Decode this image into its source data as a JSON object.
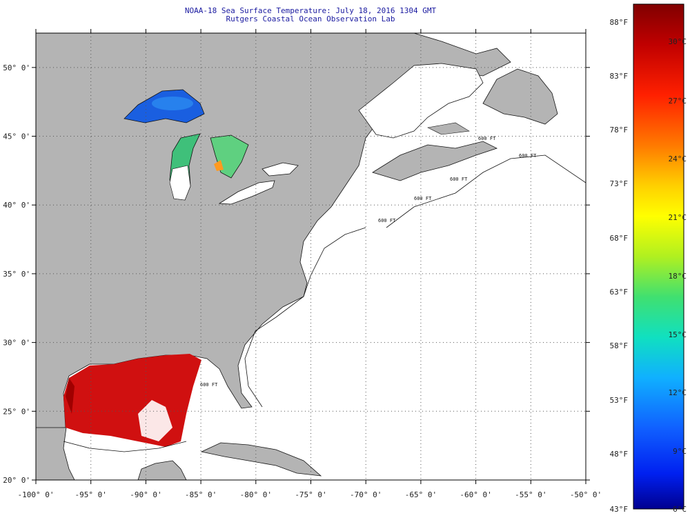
{
  "header": {
    "title": "NOAA-18 Sea Surface Temperature:  July 18, 2016 1304 GMT",
    "subtitle": "Rutgers Coastal Ocean Observation Lab"
  },
  "map": {
    "lon_range": [
      -100,
      -50
    ],
    "lat_range": [
      20,
      52.5
    ],
    "lon_ticks": [
      {
        "value": -100,
        "label": "-100° 0'"
      },
      {
        "value": -95,
        "label": "-95° 0'"
      },
      {
        "value": -90,
        "label": "-90° 0'"
      },
      {
        "value": -85,
        "label": "-85° 0'"
      },
      {
        "value": -80,
        "label": "-80° 0'"
      },
      {
        "value": -75,
        "label": "-75° 0'"
      },
      {
        "value": -70,
        "label": "-70° 0'"
      },
      {
        "value": -65,
        "label": "-65° 0'"
      },
      {
        "value": -60,
        "label": "-60° 0'"
      },
      {
        "value": -55,
        "label": "-55° 0'"
      },
      {
        "value": -50,
        "label": "-50° 0'"
      }
    ],
    "lat_ticks": [
      {
        "value": 20,
        "label": "20° 0'"
      },
      {
        "value": 25,
        "label": "25° 0'"
      },
      {
        "value": 30,
        "label": "30° 0'"
      },
      {
        "value": 35,
        "label": "35° 0'"
      },
      {
        "value": 40,
        "label": "40° 0'"
      },
      {
        "value": 45,
        "label": "45° 0'"
      },
      {
        "value": 50,
        "label": "50° 0'"
      }
    ],
    "contour_labels": [
      "600 FT",
      "600 FT",
      "600 FT",
      "600 FT",
      "600 FT",
      "600 FT"
    ],
    "colors": {
      "land": "#b4b4b4",
      "ocean_no_data": "#ffffff",
      "coastline": "#000000",
      "grid": "#555555",
      "sst_warm": "#d01010",
      "lake_superior": "#1a5fe0",
      "lake_michigan": "#3fc07a"
    }
  },
  "color_scale": {
    "fahrenheit": [
      "88°F",
      "83°F",
      "78°F",
      "73°F",
      "68°F",
      "63°F",
      "58°F",
      "53°F",
      "48°F",
      "43°F"
    ],
    "celsius": [
      "30°C",
      "27°C",
      "24°C",
      "21°C",
      "18°C",
      "15°C",
      "12°C",
      "9°C",
      "6°C"
    ],
    "gradient": [
      "#800000",
      "#c00000",
      "#ff2000",
      "#ff7a00",
      "#ffd000",
      "#ffff00",
      "#b0f020",
      "#40e070",
      "#10e0c0",
      "#10b0ff",
      "#1060ff",
      "#0020f0",
      "#000090"
    ]
  }
}
